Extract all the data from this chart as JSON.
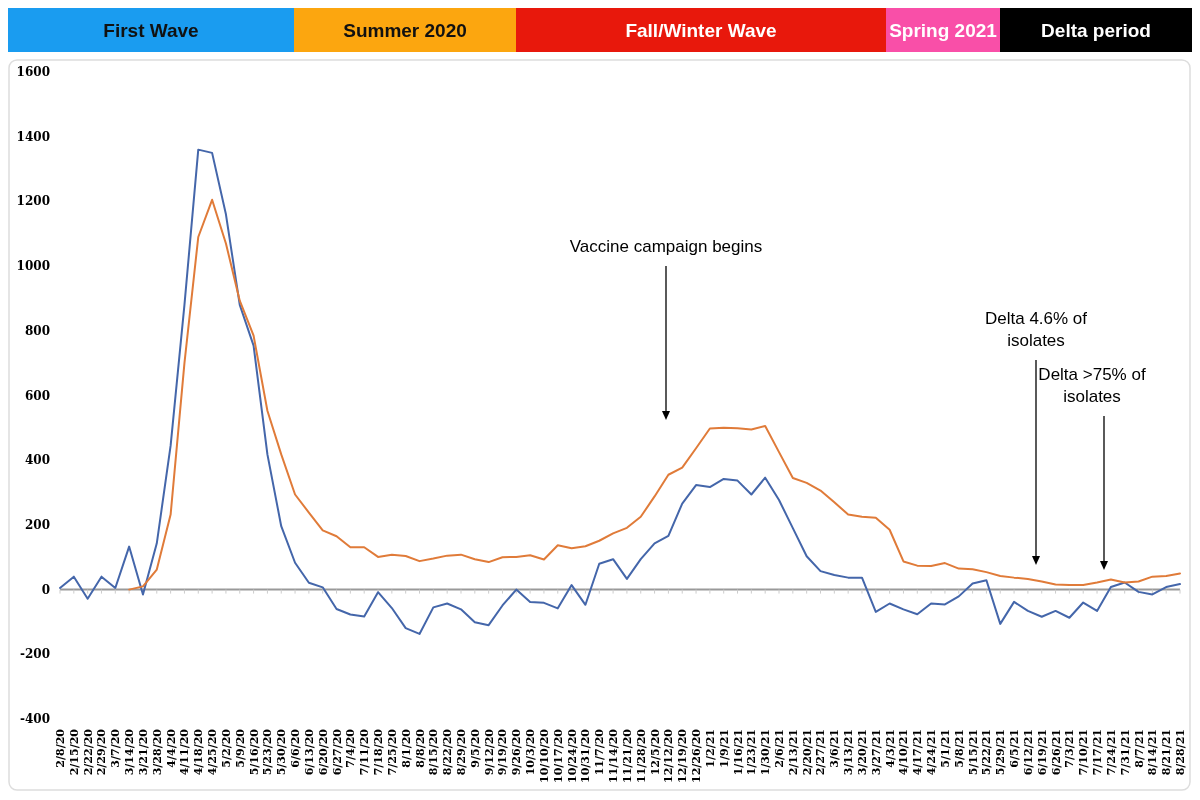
{
  "chart_data": {
    "type": "line",
    "categories": [
      "2/8/20",
      "2/15/20",
      "2/22/20",
      "2/29/20",
      "3/7/20",
      "3/14/20",
      "3/21/20",
      "3/28/20",
      "4/4/20",
      "4/11/20",
      "4/18/20",
      "4/25/20",
      "5/2/20",
      "5/9/20",
      "5/16/20",
      "5/23/20",
      "5/30/20",
      "6/6/20",
      "6/13/20",
      "6/20/20",
      "6/27/20",
      "7/4/20",
      "7/11/20",
      "7/18/20",
      "7/25/20",
      "8/1/20",
      "8/8/20",
      "8/15/20",
      "8/22/20",
      "8/29/20",
      "9/5/20",
      "9/12/20",
      "9/19/20",
      "9/26/20",
      "10/3/20",
      "10/10/20",
      "10/17/20",
      "10/24/20",
      "10/31/20",
      "11/7/20",
      "11/14/20",
      "11/21/20",
      "11/28/20",
      "12/5/20",
      "12/12/20",
      "12/19/20",
      "12/26/20",
      "1/2/21",
      "1/9/21",
      "1/16/21",
      "1/23/21",
      "1/30/21",
      "2/6/21",
      "2/13/21",
      "2/20/21",
      "2/27/21",
      "3/6/21",
      "3/13/21",
      "3/20/21",
      "3/27/21",
      "4/3/21",
      "4/10/21",
      "4/17/21",
      "4/24/21",
      "5/1/21",
      "5/8/21",
      "5/15/21",
      "5/22/21",
      "5/29/21",
      "6/5/21",
      "6/12/21",
      "6/19/21",
      "6/26/21",
      "7/3/21",
      "7/10/21",
      "7/17/21",
      "7/24/21",
      "7/31/21",
      "8/7/21",
      "8/14/21",
      "8/21/21",
      "8/28/21"
    ],
    "series": [
      {
        "color": "#4466aa",
        "values": [
          5,
          40,
          -28,
          40,
          5,
          133,
          -15,
          143,
          445,
          880,
          1360,
          1350,
          1160,
          880,
          754,
          418,
          196,
          83,
          21,
          7,
          -60,
          -77,
          -83,
          -8,
          -57,
          -119,
          -137,
          -55,
          -43,
          -61,
          -101,
          -110,
          -49,
          0,
          -38,
          -41,
          -58,
          14,
          -47,
          80,
          94,
          33,
          94,
          143,
          166,
          266,
          323,
          317,
          342,
          337,
          294,
          346,
          277,
          190,
          103,
          57,
          45,
          37,
          37,
          -69,
          -43,
          -61,
          -76,
          -43,
          -46,
          -21,
          19,
          29,
          -106,
          -38,
          -66,
          -84,
          -66,
          -87,
          -40,
          -66,
          8,
          22,
          -7,
          -15,
          8,
          17
        ]
      },
      {
        "color": "#e07b39",
        "values": [
          null,
          null,
          null,
          null,
          null,
          0,
          10,
          62,
          232,
          700,
          1090,
          1205,
          1070,
          893,
          785,
          553,
          418,
          294,
          238,
          183,
          165,
          131,
          131,
          101,
          108,
          104,
          88,
          96,
          105,
          108,
          94,
          85,
          100,
          101,
          106,
          93,
          137,
          128,
          134,
          151,
          174,
          191,
          225,
          288,
          355,
          377,
          437,
          498,
          500,
          499,
          495,
          506,
          425,
          345,
          330,
          306,
          270,
          232,
          225,
          222,
          185,
          87,
          74,
          73,
          82,
          65,
          63,
          54,
          42,
          37,
          33,
          25,
          16,
          14,
          14,
          22,
          31,
          22,
          25,
          40,
          42,
          50
        ]
      }
    ],
    "ylim": [
      -400,
      1600
    ],
    "yticks": [
      -400,
      -200,
      0,
      200,
      400,
      600,
      800,
      1000,
      1200,
      1400,
      1600
    ],
    "annotations": [
      "First Wave",
      "Summer 2020",
      "Fall/Winter Wave",
      "Spring 2021",
      "Delta period",
      "Vaccine campaign begins",
      "Delta 4.6% of isolates",
      "Delta >75% of isolates"
    ]
  }
}
